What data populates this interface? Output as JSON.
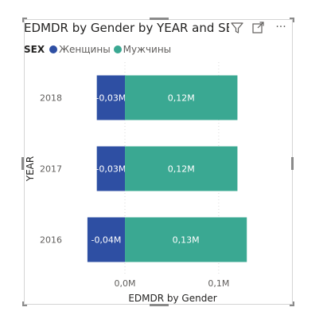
{
  "visual": {
    "title": "EDMDR by Gender by YEAR and SEX",
    "icons": [
      "filter-icon",
      "focus-mode-icon",
      "more-options-icon"
    ],
    "more_glyph": "···"
  },
  "legend": {
    "title": "SEX",
    "entries": [
      {
        "name": "Женщины",
        "color": "#2e4fa3"
      },
      {
        "name": "Мужчины",
        "color": "#3aa892"
      }
    ]
  },
  "chart_data": {
    "type": "bar",
    "orientation": "horizontal",
    "stacked": true,
    "title": "EDMDR by Gender by YEAR and SEX",
    "xlabel": "EDMDR by Gender",
    "ylabel": "YEAR",
    "categories": [
      "2018",
      "2017",
      "2016"
    ],
    "series": [
      {
        "name": "Женщины",
        "color": "#2e4fa3",
        "values": [
          -0.03,
          -0.03,
          -0.04
        ],
        "labels": [
          "-0,03M",
          "-0,03M",
          "-0,04M"
        ]
      },
      {
        "name": "Мужчины",
        "color": "#3aa892",
        "values": [
          0.12,
          0.12,
          0.13
        ],
        "labels": [
          "0,12M",
          "0,12M",
          "0,13M"
        ]
      }
    ],
    "x_ticks": [
      {
        "value": 0.0,
        "label": "0,0M"
      },
      {
        "value": 0.1,
        "label": "0,1M"
      }
    ],
    "xlim": [
      -0.045,
      0.14
    ],
    "grid": true,
    "legend_position": "top-left"
  }
}
